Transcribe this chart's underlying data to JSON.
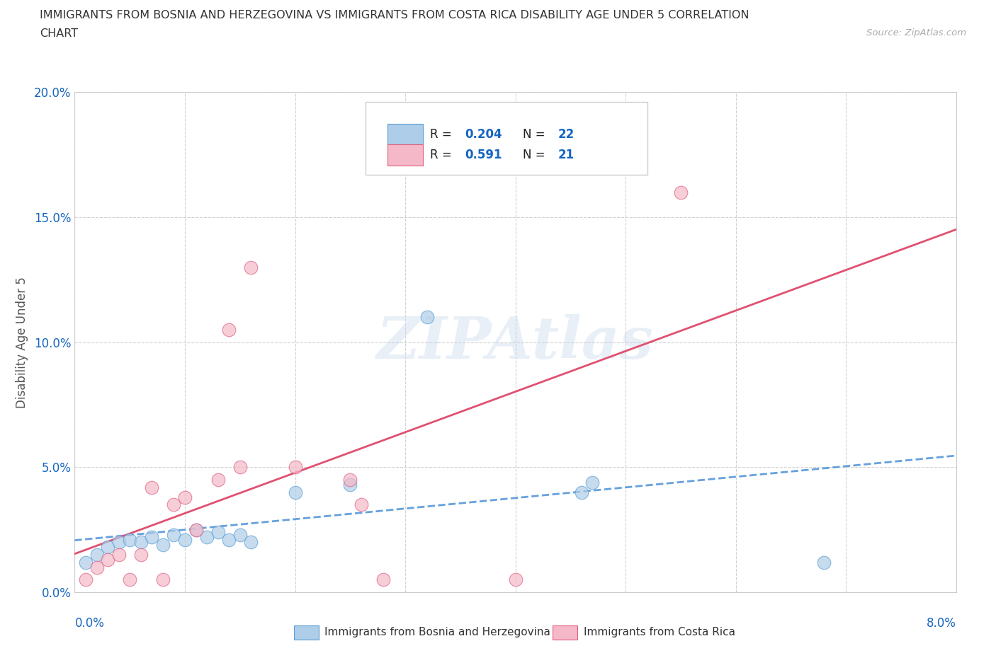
{
  "title_line1": "IMMIGRANTS FROM BOSNIA AND HERZEGOVINA VS IMMIGRANTS FROM COSTA RICA DISABILITY AGE UNDER 5 CORRELATION",
  "title_line2": "CHART",
  "source": "Source: ZipAtlas.com",
  "ylabel": "Disability Age Under 5",
  "xlim": [
    0.0,
    8.0
  ],
  "ylim": [
    0.0,
    20.0
  ],
  "watermark": "ZIPAtlas",
  "legend_r_bosnia": "0.204",
  "legend_n_bosnia": "22",
  "legend_r_costarica": "0.591",
  "legend_n_costarica": "21",
  "color_bosnia_fill": "#aecde8",
  "color_bosnia_edge": "#5a9fd4",
  "color_costarica_fill": "#f4b8c8",
  "color_costarica_edge": "#e06080",
  "color_line_bosnia": "#4a90d9",
  "color_line_costarica": "#e05070",
  "color_text_blue": "#1565C0",
  "color_title": "#333333",
  "color_grid": "#cccccc",
  "yticks": [
    0.0,
    5.0,
    10.0,
    15.0,
    20.0
  ],
  "ytick_labels": [
    "0.0%",
    "5.0%",
    "10.0%",
    "15.0%",
    "20.0%"
  ],
  "xtick_left_label": "0.0%",
  "xtick_right_label": "8.0%",
  "bosnia_x": [
    0.1,
    0.2,
    0.3,
    0.4,
    0.5,
    0.6,
    0.7,
    0.8,
    0.9,
    1.0,
    1.1,
    1.2,
    1.3,
    1.4,
    1.5,
    1.6,
    2.0,
    2.5,
    3.2,
    4.6,
    4.7,
    6.8
  ],
  "bosnia_y": [
    1.2,
    1.5,
    1.8,
    2.0,
    2.1,
    2.0,
    2.2,
    1.9,
    2.3,
    2.1,
    2.5,
    2.2,
    2.4,
    2.1,
    2.3,
    2.0,
    4.0,
    4.3,
    11.0,
    4.0,
    4.4,
    1.2
  ],
  "costarica_x": [
    0.1,
    0.2,
    0.3,
    0.4,
    0.5,
    0.6,
    0.7,
    0.8,
    0.9,
    1.0,
    1.1,
    1.3,
    1.4,
    1.5,
    1.6,
    2.0,
    2.5,
    2.6,
    2.8,
    4.0,
    5.5
  ],
  "costarica_y": [
    0.5,
    1.0,
    1.3,
    1.5,
    0.5,
    1.5,
    4.2,
    0.5,
    3.5,
    3.8,
    2.5,
    4.5,
    10.5,
    5.0,
    13.0,
    5.0,
    4.5,
    3.5,
    0.5,
    0.5,
    16.0
  ],
  "background_color": "#ffffff"
}
